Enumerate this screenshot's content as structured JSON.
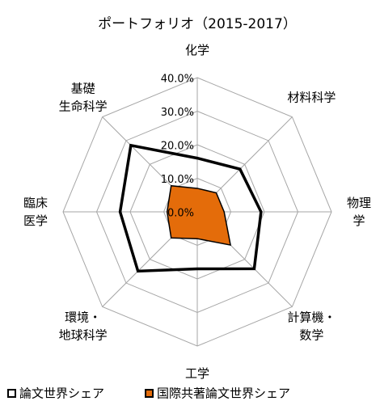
{
  "chart_data": {
    "type": "radar",
    "title": "ポートフォリオ（2015-2017）",
    "categories": [
      [
        "化学"
      ],
      [
        "材料科学"
      ],
      [
        "物理",
        "学"
      ],
      [
        "計算機・",
        "数学"
      ],
      [
        "工学"
      ],
      [
        "環境・",
        "地球科学"
      ],
      [
        "臨床",
        "医学"
      ],
      [
        "基礎",
        "生命科学"
      ]
    ],
    "series": [
      {
        "name": "論文世界シェア",
        "color": "#000000",
        "values": [
          16,
          18,
          19,
          24,
          17,
          25,
          23,
          28
        ]
      },
      {
        "name": "国際共著論文世界シェア",
        "color": "#e46c0a",
        "values": [
          7,
          8,
          8,
          14,
          8,
          11,
          9,
          11
        ]
      }
    ],
    "ylim": [
      0,
      40
    ],
    "yticks": [
      {
        "value": 0,
        "label": "0.0%"
      },
      {
        "value": 10,
        "label": "10.0%"
      },
      {
        "value": 20,
        "label": "20.0%"
      },
      {
        "value": 30,
        "label": "30.0%"
      },
      {
        "value": 40,
        "label": "40.0%"
      }
    ],
    "grid": true,
    "legend": "bottom"
  }
}
